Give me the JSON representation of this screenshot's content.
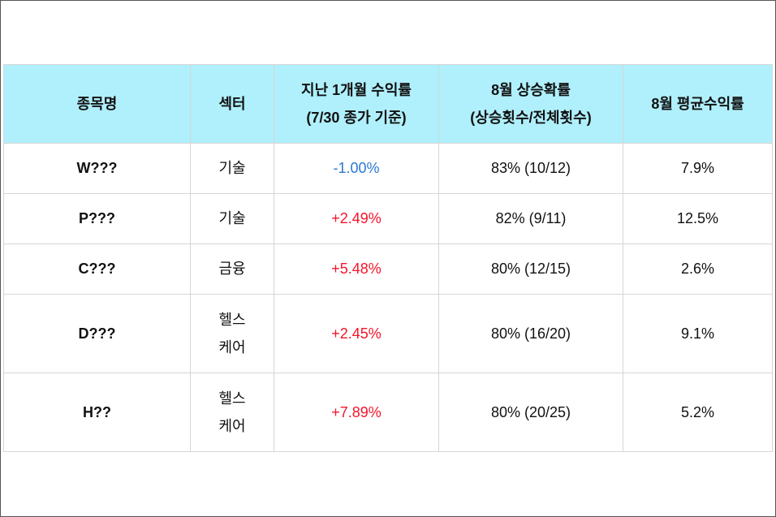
{
  "table": {
    "headers": [
      {
        "line1": "종목명",
        "line2": ""
      },
      {
        "line1": "섹터",
        "line2": ""
      },
      {
        "line1": "지난 1개월 수익률",
        "line2": "(7/30 종가 기준)"
      },
      {
        "line1": "8월 상승확률",
        "line2": "(상승횟수/전체횟수)"
      },
      {
        "line1": "8월 평균수익률",
        "line2": ""
      }
    ],
    "rows": [
      {
        "name": "W???",
        "sector1": "기술",
        "sector2": "",
        "return": "-1.00%",
        "sign": "neg",
        "prob": "83% (10/12)",
        "avg": "7.9%"
      },
      {
        "name": "P???",
        "sector1": "기술",
        "sector2": "",
        "return": "+2.49%",
        "sign": "pos",
        "prob": "82% (9/11)",
        "avg": "12.5%"
      },
      {
        "name": "C???",
        "sector1": "금융",
        "sector2": "",
        "return": "+5.48%",
        "sign": "pos",
        "prob": "80% (12/15)",
        "avg": "2.6%"
      },
      {
        "name": "D???",
        "sector1": "헬스",
        "sector2": "케어",
        "return": "+2.45%",
        "sign": "pos",
        "prob": "80% (16/20)",
        "avg": "9.1%"
      },
      {
        "name": "H??",
        "sector1": "헬스",
        "sector2": "케어",
        "return": "+7.89%",
        "sign": "pos",
        "prob": "80% (20/25)",
        "avg": "5.2%"
      }
    ]
  },
  "colors": {
    "header_bg": "#b0f0fc",
    "negative": "#2a7ad2",
    "positive": "#f5142a"
  }
}
